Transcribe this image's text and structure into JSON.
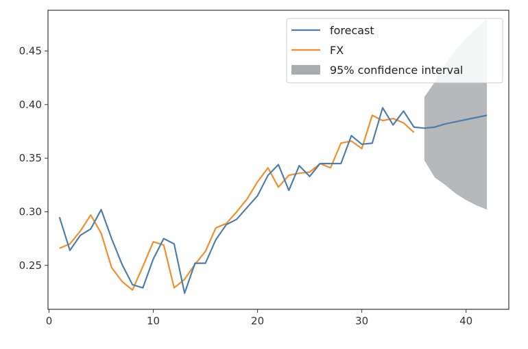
{
  "chart_data": {
    "type": "line",
    "title": "",
    "xlabel": "",
    "ylabel": "",
    "xlim": [
      -0.1,
      44.1
    ],
    "ylim": [
      0.209,
      0.488
    ],
    "x_ticks": [
      0,
      10,
      20,
      30,
      40
    ],
    "y_ticks": [
      0.25,
      0.3,
      0.35,
      0.4,
      0.45
    ],
    "x_tick_labels": [
      "0",
      "10",
      "20",
      "30",
      "40"
    ],
    "y_tick_labels": [
      "0.25",
      "0.30",
      "0.35",
      "0.40",
      "0.45"
    ],
    "grid": false,
    "legend_position": "top-right",
    "series": [
      {
        "name": "forecast",
        "color": "#4c7ead",
        "x": [
          1,
          2,
          3,
          4,
          5,
          6,
          7,
          8,
          9,
          10,
          11,
          12,
          13,
          14,
          15,
          16,
          17,
          18,
          19,
          20,
          21,
          22,
          23,
          24,
          25,
          26,
          27,
          28,
          29,
          30,
          31,
          32,
          33,
          34,
          35,
          36,
          37,
          38,
          39,
          40,
          41,
          42
        ],
        "values": [
          0.295,
          0.264,
          0.278,
          0.284,
          0.302,
          0.275,
          0.251,
          0.232,
          0.229,
          0.256,
          0.275,
          0.27,
          0.224,
          0.252,
          0.252,
          0.274,
          0.288,
          0.293,
          0.304,
          0.315,
          0.334,
          0.344,
          0.32,
          0.343,
          0.333,
          0.345,
          0.345,
          0.345,
          0.371,
          0.363,
          0.364,
          0.397,
          0.381,
          0.394,
          0.379,
          0.378,
          0.379,
          0.382,
          0.384,
          0.386,
          0.388,
          0.39
        ]
      },
      {
        "name": "FX",
        "color": "#f28e2b",
        "x": [
          1,
          2,
          3,
          4,
          5,
          6,
          7,
          8,
          9,
          10,
          11,
          12,
          13,
          14,
          15,
          16,
          17,
          18,
          19,
          20,
          21,
          22,
          23,
          24,
          25,
          26,
          27,
          28,
          29,
          30,
          31,
          32,
          33,
          34,
          35
        ],
        "values": [
          0.266,
          0.27,
          0.282,
          0.297,
          0.28,
          0.248,
          0.235,
          0.227,
          0.249,
          0.272,
          0.269,
          0.229,
          0.237,
          0.251,
          0.263,
          0.285,
          0.289,
          0.3,
          0.312,
          0.328,
          0.341,
          0.323,
          0.334,
          0.336,
          0.337,
          0.345,
          0.341,
          0.364,
          0.366,
          0.359,
          0.39,
          0.385,
          0.387,
          0.383,
          0.374
        ]
      }
    ],
    "confidence_interval": {
      "name": "95% confidence interval",
      "color": "#a9abae",
      "x": [
        36,
        37,
        38,
        39,
        40,
        41,
        42
      ],
      "lower": [
        0.348,
        0.332,
        0.325,
        0.317,
        0.311,
        0.306,
        0.302
      ],
      "upper": [
        0.407,
        0.421,
        0.438,
        0.451,
        0.462,
        0.471,
        0.48
      ]
    }
  }
}
